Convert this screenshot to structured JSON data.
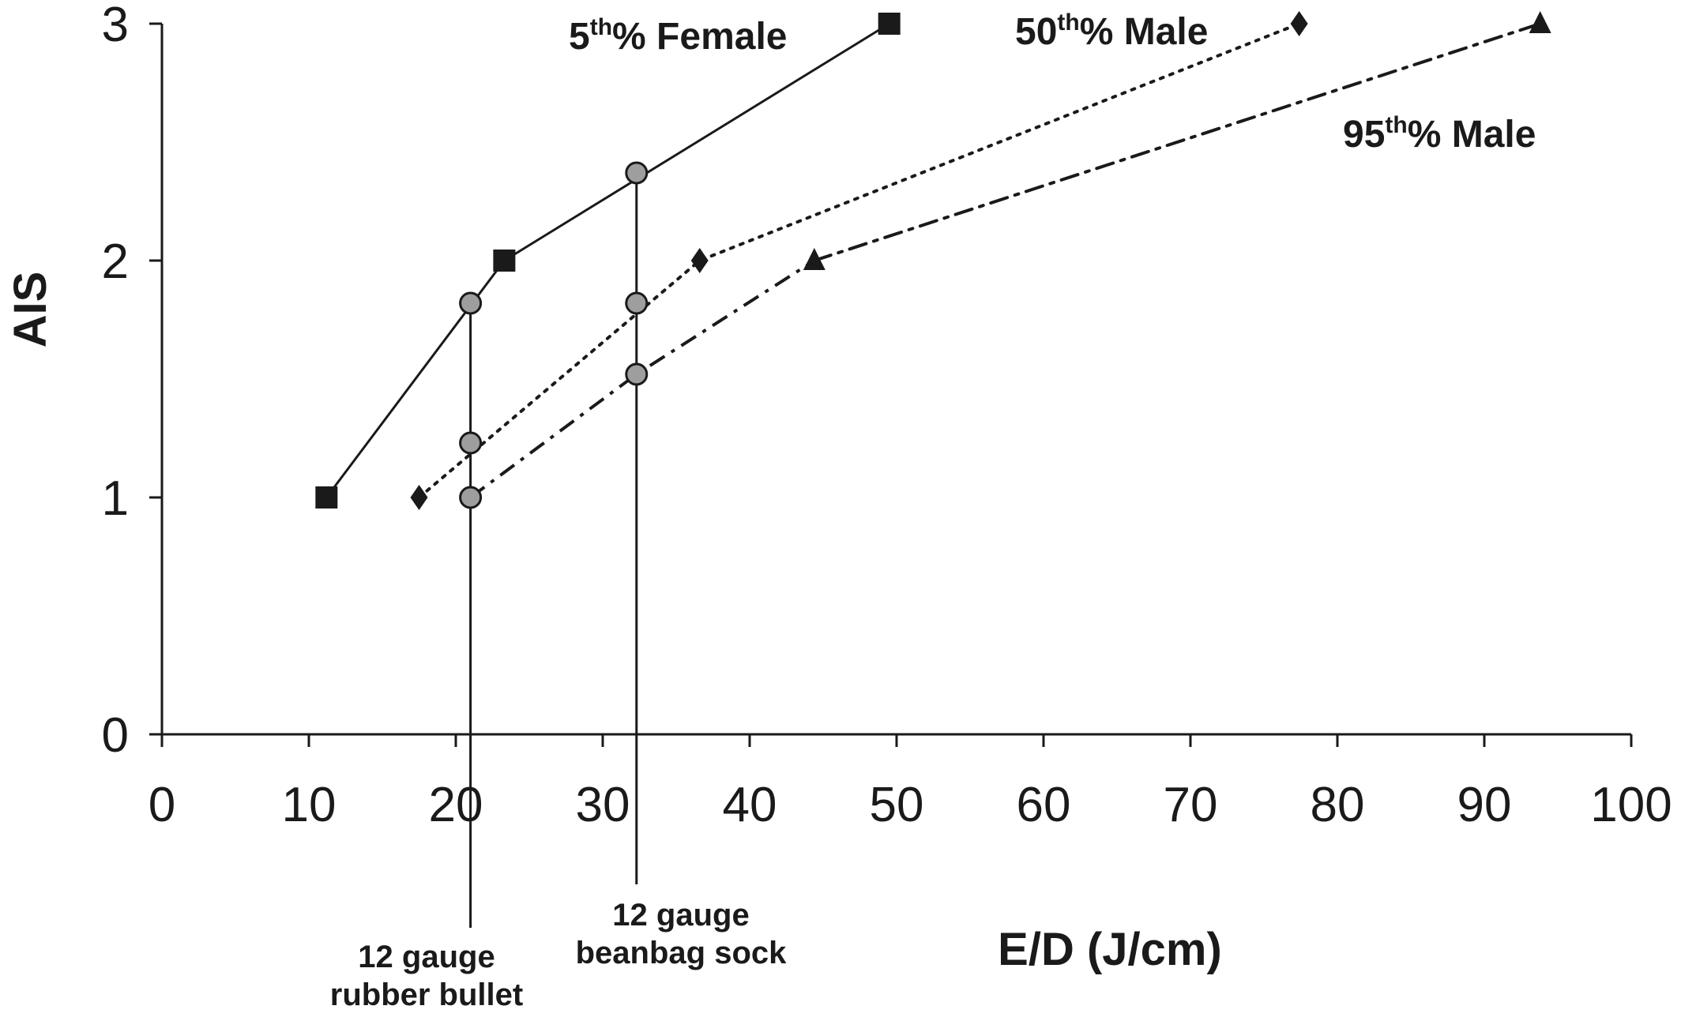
{
  "chart_data": {
    "type": "line",
    "xlabel": "E/D (J/cm)",
    "ylabel": "AIS",
    "xlim": [
      0,
      100
    ],
    "ylim": [
      0,
      3
    ],
    "x_ticks": [
      "0",
      "10",
      "20",
      "30",
      "40",
      "50",
      "60",
      "70",
      "80",
      "90",
      "100"
    ],
    "y_ticks": [
      "0",
      "1",
      "2",
      "3"
    ],
    "grid": false,
    "series": [
      {
        "name": "5th% Female",
        "label_base": "5",
        "label_sup": "th",
        "label_rest": "% Female",
        "line_style": "solid",
        "marker": "square",
        "x": [
          11.2,
          23.3,
          49.5
        ],
        "y": [
          1,
          2,
          3
        ]
      },
      {
        "name": "50th% Male",
        "label_base": "50",
        "label_sup": "th",
        "label_rest": "% Male",
        "line_style": "dotted",
        "marker": "diamond",
        "x": [
          17.5,
          36.6,
          77.4
        ],
        "y": [
          1,
          2,
          3
        ]
      },
      {
        "name": "95th% Male",
        "label_base": "95",
        "label_sup": "th",
        "label_rest": "% Male",
        "line_style": "dash-dot",
        "marker": "triangle",
        "x": [
          44.4,
          93.8
        ],
        "y": [
          2,
          3
        ]
      }
    ],
    "annotations": [
      {
        "lines": [
          "12 gauge",
          "rubber bullet"
        ],
        "x": 21.0,
        "intersections": [
          1.0,
          1.23,
          1.82
        ]
      },
      {
        "lines": [
          "12 gauge",
          "beanbag sock"
        ],
        "x": 32.3,
        "intersections": [
          1.52,
          1.82,
          2.37
        ]
      }
    ]
  }
}
